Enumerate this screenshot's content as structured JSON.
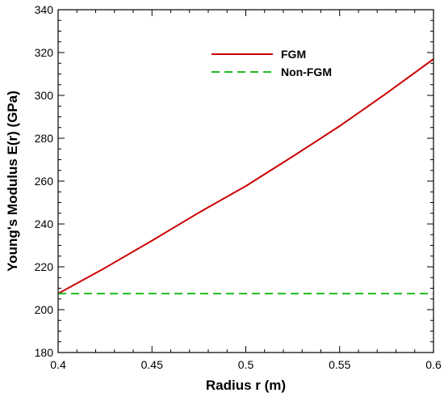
{
  "chart_data": {
    "type": "line",
    "title": "",
    "xlabel": "Radius r (m)",
    "ylabel": "Young's Modulus E(r) (GPa)",
    "xlim": [
      0.4,
      0.6
    ],
    "ylim": [
      180,
      340
    ],
    "xticks": [
      0.4,
      0.45,
      0.5,
      0.55,
      0.6
    ],
    "xtick_labels": [
      "0.4",
      "0.45",
      "0.5",
      "0.55",
      "0.6"
    ],
    "yticks": [
      180,
      200,
      220,
      240,
      260,
      280,
      300,
      320,
      340
    ],
    "ytick_labels": [
      "180",
      "200",
      "220",
      "240",
      "260",
      "280",
      "300",
      "320",
      "340"
    ],
    "grid": false,
    "legend_position": "top-center",
    "series": [
      {
        "name": "FGM",
        "color": "#cc0000",
        "line_style": "solid",
        "x": [
          0.4,
          0.425,
          0.45,
          0.475,
          0.5,
          0.525,
          0.55,
          0.575,
          0.6
        ],
        "y": [
          207.5,
          219.5,
          232.2,
          245.3,
          257.7,
          271.5,
          285.7,
          301.0,
          317.0
        ]
      },
      {
        "name": "Non-FGM",
        "color": "#22bb22",
        "line_style": "dashed",
        "x": [
          0.4,
          0.6
        ],
        "y": [
          207.5,
          207.5
        ]
      }
    ]
  }
}
